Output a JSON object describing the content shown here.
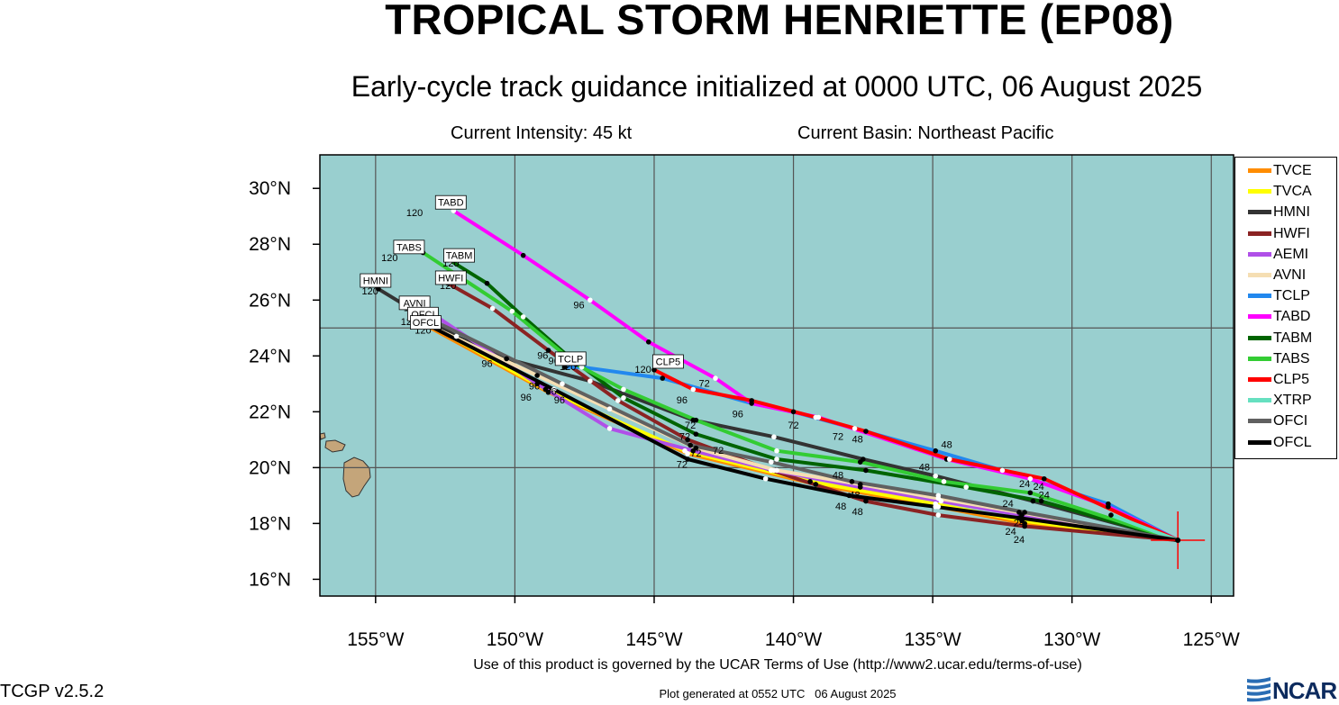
{
  "header": {
    "title": "TROPICAL STORM HENRIETTE (EP08)",
    "subtitle": "Early-cycle track guidance initialized at 0000 UTC, 06 August 2025",
    "intensity": "Current Intensity: 45 kt",
    "basin": "Current Basin: Northeast Pacific"
  },
  "footer": {
    "terms": "Use of this product is governed by the UCAR Terms of Use (http://www2.ucar.edu/terms-of-use)",
    "version": "TCGP v2.5.2",
    "generated": "Plot generated at 0552 UTC   06 August 2025",
    "logo_text": "NCAR"
  },
  "colors": {
    "ocean": "#99cfcf",
    "land": "#c4a57a",
    "grid": "#555555",
    "storm_marker": "#ff0000"
  },
  "chart_data": {
    "type": "line",
    "title": "TROPICAL STORM HENRIETTE (EP08)",
    "xlim": [
      -157,
      -124.2
    ],
    "ylim": [
      15.4,
      31.2
    ],
    "x_ticks": [
      -155,
      -150,
      -145,
      -140,
      -135,
      -130,
      -125
    ],
    "x_tick_labels": [
      "155°W",
      "150°W",
      "145°W",
      "140°W",
      "135°W",
      "130°W",
      "125°W"
    ],
    "y_ticks": [
      16,
      18,
      20,
      22,
      24,
      26,
      28,
      30
    ],
    "y_tick_labels": [
      "16°N",
      "18°N",
      "20°N",
      "22°N",
      "24°N",
      "26°N",
      "28°N",
      "30°N"
    ],
    "grid": true,
    "legend_position": "right",
    "initial_position": {
      "lon": -126.2,
      "lat": 17.4
    },
    "series": [
      {
        "name": "TVCE",
        "color": "#ff8c00",
        "points": [
          [
            -126.2,
            17.4
          ],
          [
            -131.7,
            18.0
          ],
          [
            -134.8,
            18.6
          ],
          [
            -139.2,
            19.4
          ],
          [
            -143.8,
            20.5
          ],
          [
            -148.8,
            22.7
          ],
          [
            -153.2,
            25.1
          ]
        ]
      },
      {
        "name": "TVCA",
        "color": "#ffff00",
        "points": [
          [
            -126.2,
            17.4
          ],
          [
            -131.8,
            18.1
          ],
          [
            -134.9,
            18.7
          ],
          [
            -139.4,
            19.5
          ],
          [
            -143.9,
            20.6
          ],
          [
            -148.9,
            22.8
          ],
          [
            -153.2,
            25.2
          ]
        ]
      },
      {
        "name": "HMNI",
        "color": "#333333",
        "points": [
          [
            -126.2,
            17.4
          ],
          [
            -131.4,
            18.8
          ],
          [
            -134.9,
            19.7
          ],
          [
            -137.5,
            20.3
          ],
          [
            -140.7,
            21.1
          ],
          [
            -143.6,
            21.7
          ],
          [
            -147.3,
            23.1
          ],
          [
            -150.3,
            23.9
          ],
          [
            -152.1,
            24.7
          ],
          [
            -154.9,
            26.4
          ]
        ]
      },
      {
        "name": "HWFI",
        "color": "#8b2323",
        "points": [
          [
            -126.2,
            17.4
          ],
          [
            -131.7,
            17.9
          ],
          [
            -134.8,
            18.3
          ],
          [
            -137.4,
            18.8
          ],
          [
            -140.8,
            19.9
          ],
          [
            -143.8,
            21.0
          ],
          [
            -146.3,
            22.4
          ],
          [
            -148.8,
            24.2
          ],
          [
            -150.8,
            25.7
          ],
          [
            -152.4,
            26.6
          ]
        ]
      },
      {
        "name": "AEMI",
        "color": "#b050e8",
        "points": [
          [
            -126.2,
            17.4
          ],
          [
            -131.8,
            18.3
          ],
          [
            -134.7,
            18.8
          ],
          [
            -137.6,
            19.3
          ],
          [
            -140.7,
            19.9
          ],
          [
            -143.6,
            20.6
          ],
          [
            -146.6,
            21.4
          ],
          [
            -149.2,
            23.0
          ],
          [
            -152.8,
            25.4
          ]
        ]
      },
      {
        "name": "AVNI",
        "color": "#f5deb3",
        "points": [
          [
            -126.2,
            17.4
          ],
          [
            -131.9,
            18.4
          ],
          [
            -134.8,
            18.9
          ],
          [
            -137.6,
            19.4
          ],
          [
            -140.6,
            19.9
          ],
          [
            -143.5,
            20.7
          ],
          [
            -146.6,
            22.1
          ],
          [
            -149.2,
            23.3
          ],
          [
            -153.1,
            25.1
          ]
        ]
      },
      {
        "name": "TCLP",
        "color": "#2288ee",
        "points": [
          [
            -126.2,
            17.4
          ],
          [
            -128.7,
            18.7
          ],
          [
            -132.5,
            19.9
          ],
          [
            -134.9,
            20.6
          ],
          [
            -137.8,
            21.4
          ],
          [
            -140.0,
            22.0
          ],
          [
            -141.5,
            22.3
          ],
          [
            -144.7,
            23.2
          ],
          [
            -147.6,
            23.6
          ],
          [
            -148.2,
            23.6
          ]
        ]
      },
      {
        "name": "TABD",
        "color": "#ff00ff",
        "points": [
          [
            -126.2,
            17.4
          ],
          [
            -128.7,
            18.6
          ],
          [
            -131.5,
            19.6
          ],
          [
            -134.5,
            20.3
          ],
          [
            -139.1,
            21.8
          ],
          [
            -141.5,
            22.3
          ],
          [
            -142.8,
            23.2
          ],
          [
            -145.2,
            24.5
          ],
          [
            -147.3,
            26.0
          ],
          [
            -149.7,
            27.6
          ],
          [
            -152.2,
            29.2
          ]
        ]
      },
      {
        "name": "TABM",
        "color": "#006400",
        "points": [
          [
            -126.2,
            17.4
          ],
          [
            -131.1,
            18.8
          ],
          [
            -133.8,
            19.3
          ],
          [
            -137.4,
            19.9
          ],
          [
            -140.6,
            20.3
          ],
          [
            -143.5,
            21.2
          ],
          [
            -146.1,
            22.5
          ],
          [
            -148.1,
            24.0
          ],
          [
            -149.7,
            25.4
          ],
          [
            -151.0,
            26.6
          ],
          [
            -152.3,
            27.4
          ]
        ]
      },
      {
        "name": "TABS",
        "color": "#33cc33",
        "points": [
          [
            -126.2,
            17.4
          ],
          [
            -131.5,
            19.1
          ],
          [
            -134.6,
            19.5
          ],
          [
            -137.6,
            20.2
          ],
          [
            -140.6,
            20.6
          ],
          [
            -143.5,
            21.7
          ],
          [
            -146.1,
            22.8
          ],
          [
            -147.8,
            23.7
          ],
          [
            -150.1,
            25.6
          ],
          [
            -153.3,
            27.7
          ]
        ]
      },
      {
        "name": "CLP5",
        "color": "#ff0000",
        "points": [
          [
            -126.2,
            17.4
          ],
          [
            -131.0,
            19.6
          ],
          [
            -134.4,
            20.3
          ],
          [
            -137.4,
            21.3
          ],
          [
            -139.2,
            21.8
          ],
          [
            -141.5,
            22.4
          ],
          [
            -143.6,
            22.8
          ],
          [
            -145.0,
            23.5
          ]
        ]
      },
      {
        "name": "XTRP",
        "color": "#66e0c0",
        "points": [
          [
            -126.2,
            17.4
          ],
          [
            -128.6,
            18.3
          ]
        ]
      },
      {
        "name": "OFCI",
        "color": "#606060",
        "points": [
          [
            -126.2,
            17.4
          ],
          [
            -131.7,
            18.4
          ],
          [
            -134.8,
            19.0
          ],
          [
            -137.9,
            19.5
          ],
          [
            -140.8,
            20.2
          ],
          [
            -143.7,
            20.8
          ],
          [
            -148.3,
            23.0
          ],
          [
            -153.0,
            25.3
          ]
        ]
      },
      {
        "name": "OFCL",
        "color": "#000000",
        "points": [
          [
            -126.2,
            17.4
          ],
          [
            -131.9,
            18.2
          ],
          [
            -134.9,
            18.6
          ],
          [
            -138.0,
            19.0
          ],
          [
            -141.0,
            19.6
          ],
          [
            -143.8,
            20.3
          ],
          [
            -148.6,
            22.8
          ],
          [
            -153.1,
            25.1
          ]
        ]
      }
    ],
    "track_end_labels": [
      {
        "text": "TABD",
        "lon": -152.3,
        "lat": 29.5
      },
      {
        "text": "TABS",
        "lon": -153.8,
        "lat": 27.9
      },
      {
        "text": "TABM",
        "lon": -152.0,
        "lat": 27.6
      },
      {
        "text": "HWFI",
        "lon": -152.3,
        "lat": 26.8
      },
      {
        "text": "HMNI",
        "lon": -155.0,
        "lat": 26.7
      },
      {
        "text": "AVNI",
        "lon": -153.6,
        "lat": 25.9
      },
      {
        "text": "OFCI",
        "lon": -153.3,
        "lat": 25.5
      },
      {
        "text": "OFCL",
        "lon": -153.2,
        "lat": 25.2
      },
      {
        "text": "TCLP",
        "lon": -148.0,
        "lat": 23.9
      },
      {
        "text": "CLP5",
        "lon": -144.5,
        "lat": 23.8
      }
    ],
    "hour_labels": [
      {
        "text": "120",
        "lon": -153.6,
        "lat": 29.0
      },
      {
        "text": "120",
        "lon": -154.5,
        "lat": 27.4
      },
      {
        "text": "120",
        "lon": -152.3,
        "lat": 27.2
      },
      {
        "text": "120",
        "lon": -152.4,
        "lat": 26.4
      },
      {
        "text": "120",
        "lon": -155.2,
        "lat": 26.2
      },
      {
        "text": "120",
        "lon": -153.7,
        "lat": 25.6
      },
      {
        "text": "120",
        "lon": -153.8,
        "lat": 25.1
      },
      {
        "text": "120",
        "lon": -153.3,
        "lat": 24.8
      },
      {
        "text": "120",
        "lon": -145.4,
        "lat": 23.4
      },
      {
        "text": "120",
        "lon": -148.1,
        "lat": 23.5
      },
      {
        "text": "96",
        "lon": -147.7,
        "lat": 25.7
      },
      {
        "text": "96",
        "lon": -151.0,
        "lat": 23.6
      },
      {
        "text": "96",
        "lon": -149.0,
        "lat": 23.9
      },
      {
        "text": "96",
        "lon": -148.6,
        "lat": 23.7
      },
      {
        "text": "96",
        "lon": -149.3,
        "lat": 22.8
      },
      {
        "text": "96",
        "lon": -148.7,
        "lat": 22.6
      },
      {
        "text": "96",
        "lon": -149.6,
        "lat": 22.4
      },
      {
        "text": "96",
        "lon": -148.4,
        "lat": 22.3
      },
      {
        "text": "96",
        "lon": -144.0,
        "lat": 22.3
      },
      {
        "text": "96",
        "lon": -142.0,
        "lat": 21.8
      },
      {
        "text": "72",
        "lon": -143.2,
        "lat": 22.9
      },
      {
        "text": "72",
        "lon": -140.0,
        "lat": 21.4
      },
      {
        "text": "72",
        "lon": -138.4,
        "lat": 21.0
      },
      {
        "text": "72",
        "lon": -143.7,
        "lat": 21.4
      },
      {
        "text": "72",
        "lon": -143.9,
        "lat": 21.0
      },
      {
        "text": "72",
        "lon": -143.5,
        "lat": 20.4
      },
      {
        "text": "72",
        "lon": -142.7,
        "lat": 20.5
      },
      {
        "text": "72",
        "lon": -144.0,
        "lat": 20.0
      },
      {
        "text": "48",
        "lon": -137.7,
        "lat": 20.9
      },
      {
        "text": "48",
        "lon": -134.5,
        "lat": 20.7
      },
      {
        "text": "48",
        "lon": -135.3,
        "lat": 19.9
      },
      {
        "text": "48",
        "lon": -138.4,
        "lat": 19.6
      },
      {
        "text": "48",
        "lon": -137.8,
        "lat": 18.9
      },
      {
        "text": "48",
        "lon": -138.3,
        "lat": 18.5
      },
      {
        "text": "48",
        "lon": -137.7,
        "lat": 18.3
      },
      {
        "text": "24",
        "lon": -131.7,
        "lat": 19.3
      },
      {
        "text": "24",
        "lon": -131.2,
        "lat": 19.2
      },
      {
        "text": "24",
        "lon": -131.0,
        "lat": 18.9
      },
      {
        "text": "24",
        "lon": -132.3,
        "lat": 18.6
      },
      {
        "text": "24",
        "lon": -131.9,
        "lat": 17.9
      },
      {
        "text": "24",
        "lon": -132.2,
        "lat": 17.6
      },
      {
        "text": "24",
        "lon": -131.9,
        "lat": 17.3
      }
    ]
  }
}
